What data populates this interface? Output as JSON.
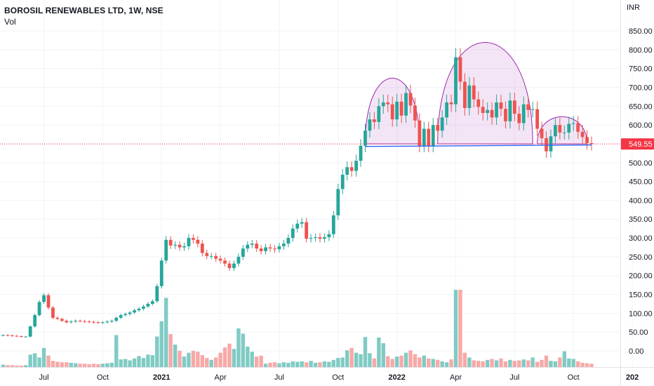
{
  "chart_data": {
    "type": "candlestick",
    "title": "BOROSIL RENEWABLES LTD, 1W, NSE",
    "volume_label": "Vol",
    "currency": "INR",
    "last_price": 549.55,
    "last_price_label": "549.55",
    "y_ticks": [
      850,
      800,
      750,
      700,
      650,
      600,
      550,
      500,
      450,
      400,
      350,
      300,
      250,
      200,
      150,
      100,
      50,
      0
    ],
    "y_tick_labels": [
      "850.00",
      "800.00",
      "750.00",
      "700.00",
      "650.00",
      "600.00",
      "550.00",
      "500.00",
      "450.00",
      "400.00",
      "350.00",
      "300.00",
      "250.00",
      "200.00",
      "150.00",
      "100.00",
      "50.00",
      "0.00"
    ],
    "ylim": [
      -5,
      880
    ],
    "x_ticks": [
      {
        "label": "Jul",
        "week": 9
      },
      {
        "label": "Oct",
        "week": 22
      },
      {
        "label": "2021",
        "week": 35,
        "bold": true
      },
      {
        "label": "Apr",
        "week": 48
      },
      {
        "label": "Jul",
        "week": 61
      },
      {
        "label": "Oct",
        "week": 74
      },
      {
        "label": "2022",
        "week": 87,
        "bold": true
      },
      {
        "label": "Apr",
        "week": 100
      },
      {
        "label": "Jul",
        "week": 113
      },
      {
        "label": "Oct",
        "week": 126
      },
      {
        "label": "202",
        "week": 139,
        "bold": true
      }
    ],
    "colors": {
      "up": "#26a69a",
      "down": "#ef5350",
      "vol_up": "#80cbc4",
      "vol_down": "#f7a9a7",
      "pattern": "#9c27b0",
      "neckline": "#2962ff",
      "price_line": "#f23645"
    },
    "closes": [
      42,
      41,
      40,
      39,
      38,
      38,
      65,
      95,
      130,
      148,
      115,
      88,
      85,
      80,
      76,
      78,
      80,
      79,
      78,
      77,
      76,
      75,
      76,
      78,
      80,
      88,
      95,
      98,
      102,
      108,
      112,
      118,
      125,
      132,
      172,
      240,
      295,
      280,
      282,
      275,
      278,
      300,
      295,
      285,
      260,
      252,
      252,
      245,
      240,
      232,
      220,
      232,
      250,
      272,
      282,
      285,
      272,
      265,
      275,
      272,
      270,
      278,
      285,
      300,
      325,
      338,
      342,
      298,
      300,
      302,
      298,
      302,
      310,
      360,
      430,
      468,
      488,
      478,
      505,
      545,
      585,
      615,
      608,
      650,
      660,
      655,
      615,
      662,
      625,
      685,
      652,
      612,
      545,
      590,
      545,
      600,
      585,
      620,
      660,
      655,
      780,
      715,
      645,
      705,
      668,
      648,
      632,
      640,
      620,
      660,
      643,
      610,
      665,
      630,
      605,
      655,
      640,
      642,
      590,
      565,
      530,
      570,
      600,
      580,
      580,
      603,
      605,
      582,
      568,
      552,
      549.55
    ],
    "volumes": [
      5,
      4,
      4,
      3,
      3,
      4,
      26,
      29,
      20,
      40,
      24,
      13,
      11,
      10,
      10,
      9,
      8,
      7,
      7,
      6,
      7,
      6,
      7,
      8,
      9,
      67,
      16,
      17,
      14,
      18,
      23,
      19,
      26,
      25,
      64,
      96,
      145,
      69,
      47,
      34,
      22,
      30,
      34,
      32,
      25,
      19,
      15,
      20,
      30,
      41,
      49,
      38,
      81,
      70,
      43,
      32,
      22,
      24,
      7,
      9,
      10,
      8,
      10,
      9,
      12,
      11,
      12,
      10,
      13,
      9,
      10,
      12,
      11,
      15,
      19,
      20,
      35,
      40,
      30,
      27,
      63,
      29,
      18,
      62,
      50,
      23,
      17,
      22,
      24,
      30,
      35,
      27,
      20,
      24,
      18,
      17,
      15,
      12,
      10,
      16,
      162,
      162,
      30,
      20,
      14,
      13,
      12,
      15,
      17,
      14,
      18,
      12,
      15,
      13,
      14,
      16,
      14,
      20,
      11,
      15,
      24,
      13,
      12,
      20,
      33,
      18,
      17,
      12,
      9,
      8,
      7
    ]
  }
}
